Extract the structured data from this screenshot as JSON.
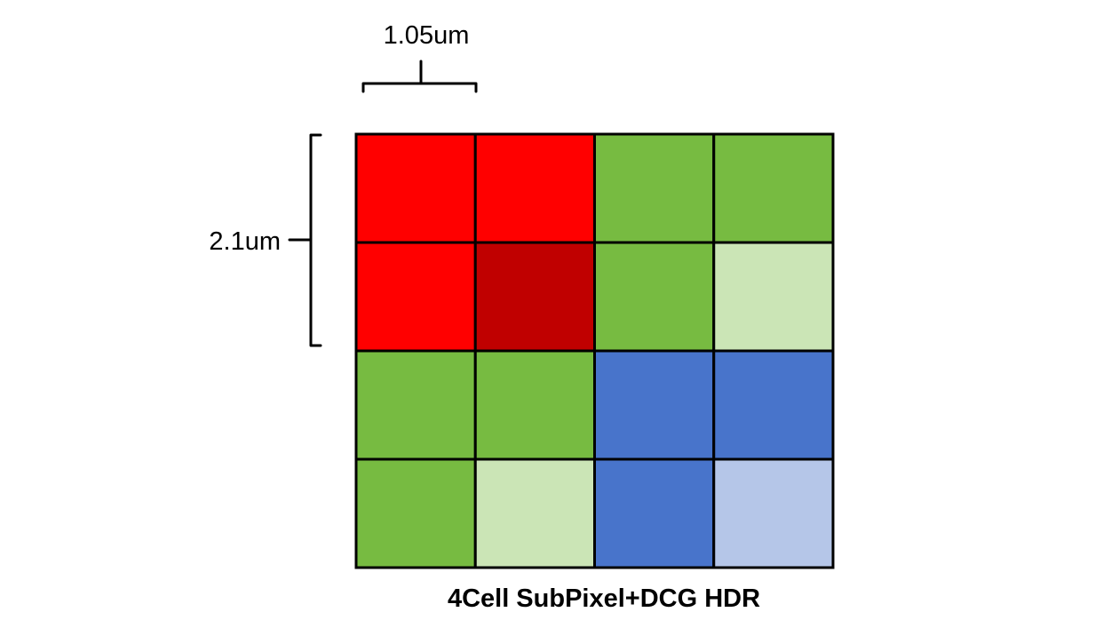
{
  "width_label": "1.05um",
  "height_label": "2.1um",
  "caption": "4Cell SubPixel+DCG HDR",
  "grid": {
    "rows": 4,
    "cols": 4,
    "cells": [
      [
        "#ff0000",
        "#ff0000",
        "#77bb41",
        "#77bb41"
      ],
      [
        "#ff0000",
        "#c00000",
        "#77bb41",
        "#cbe5b6"
      ],
      [
        "#77bb41",
        "#77bb41",
        "#4874cb",
        "#4874cb"
      ],
      [
        "#77bb41",
        "#cbe5b6",
        "#4874cb",
        "#b5c6e8"
      ]
    ]
  }
}
